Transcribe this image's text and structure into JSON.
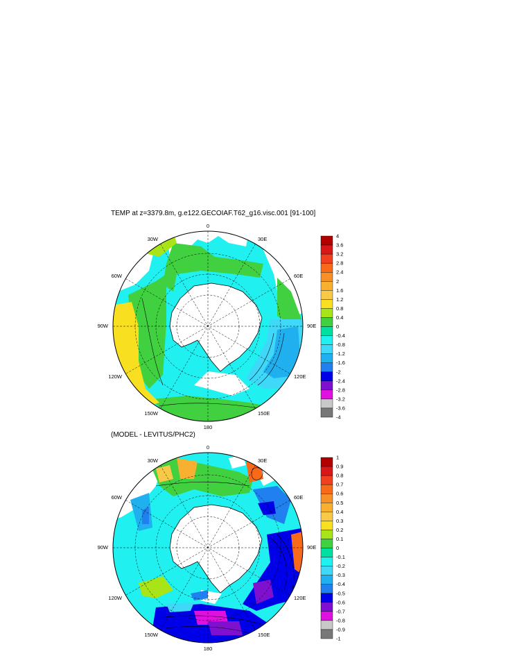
{
  "panel1": {
    "title": "TEMP at z=3379.8m, g.e122.GECOIAF.T62_g16.visc.001 [91-100]",
    "lon_labels": {
      "n": "0",
      "ne": "30E",
      "e1": "60E",
      "e": "90E",
      "se": "120E",
      "s2": "150E",
      "s": "180",
      "sw": "150W",
      "w2": "120W",
      "w": "90W",
      "nw2": "60W",
      "nw": "30W"
    },
    "colorbar": {
      "labels": [
        "4",
        "3.6",
        "3.2",
        "2.8",
        "2.4",
        "2",
        "1.6",
        "1.2",
        "0.8",
        "0.4",
        "0",
        "-0.4",
        "-0.8",
        "-1.2",
        "-1.6",
        "-2",
        "-2.4",
        "-2.8",
        "-3.2",
        "-3.6",
        "-4"
      ],
      "colors": [
        "#b00000",
        "#d81818",
        "#f04020",
        "#f86a1a",
        "#f89028",
        "#f8b030",
        "#f8c848",
        "#f8e020",
        "#a8e418",
        "#40d040",
        "#00e0a0",
        "#20f0f0",
        "#40d8f8",
        "#20b0f0",
        "#2080f0",
        "#0000e8",
        "#8010d0",
        "#e010e0",
        "#c8c8c8",
        "#787878"
      ]
    }
  },
  "panel2": {
    "title": "(MODEL - LEVITUS/PHC2)",
    "lon_labels": {
      "n": "0",
      "ne": "30E",
      "e1": "60E",
      "e": "90E",
      "se": "120E",
      "s2": "150E",
      "s": "180",
      "sw": "150W",
      "w2": "120W",
      "w": "90W",
      "nw2": "60W",
      "nw": "30W"
    },
    "colorbar": {
      "labels": [
        "1",
        "0.9",
        "0.8",
        "0.7",
        "0.6",
        "0.5",
        "0.4",
        "0.3",
        "0.2",
        "0.1",
        "0",
        "-0.1",
        "-0.2",
        "-0.3",
        "-0.4",
        "-0.5",
        "-0.6",
        "-0.7",
        "-0.8",
        "-0.9",
        "-1"
      ],
      "colors": [
        "#b00000",
        "#d81818",
        "#f04020",
        "#f86a1a",
        "#f89028",
        "#f8b030",
        "#f8c848",
        "#f8e020",
        "#a8e418",
        "#40d040",
        "#00e0a0",
        "#20f0f0",
        "#40d8f8",
        "#20b0f0",
        "#2080f0",
        "#0000e8",
        "#8010d0",
        "#e010e0",
        "#c8c8c8",
        "#787878"
      ]
    }
  }
}
